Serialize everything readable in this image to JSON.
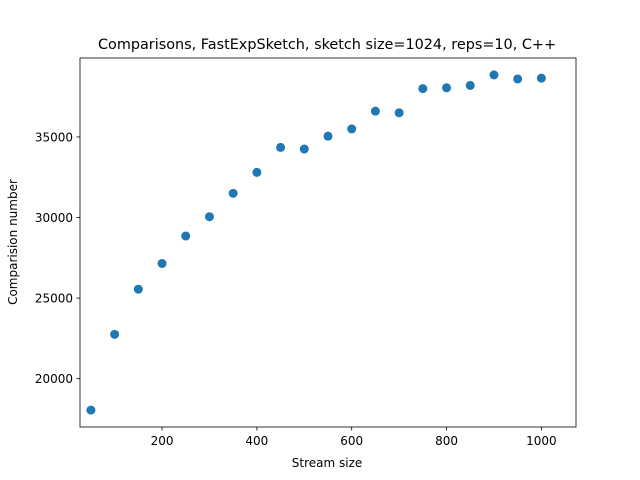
{
  "chart_data": {
    "type": "scatter",
    "title": "Comparisons, FastExpSketch, sketch size=1024, reps=10, C++",
    "xlabel": "Stream size",
    "ylabel": "Comparision number",
    "xlim": [
      27,
      1073
    ],
    "ylim": [
      17000,
      39900
    ],
    "xticks": [
      200,
      400,
      600,
      800,
      1000
    ],
    "yticks": [
      20000,
      25000,
      30000,
      35000
    ],
    "grid": false,
    "marker_color": "#1f77b4",
    "series": [
      {
        "x": [
          50,
          100,
          150,
          200,
          250,
          300,
          350,
          400,
          450,
          500,
          550,
          600,
          650,
          700,
          750,
          800,
          850,
          900,
          950,
          1000
        ],
        "y": [
          18050,
          22750,
          25550,
          27150,
          28850,
          30050,
          31500,
          32800,
          34350,
          34250,
          35050,
          35500,
          36600,
          36500,
          38000,
          38050,
          38200,
          38850,
          38600,
          38650
        ]
      }
    ]
  }
}
